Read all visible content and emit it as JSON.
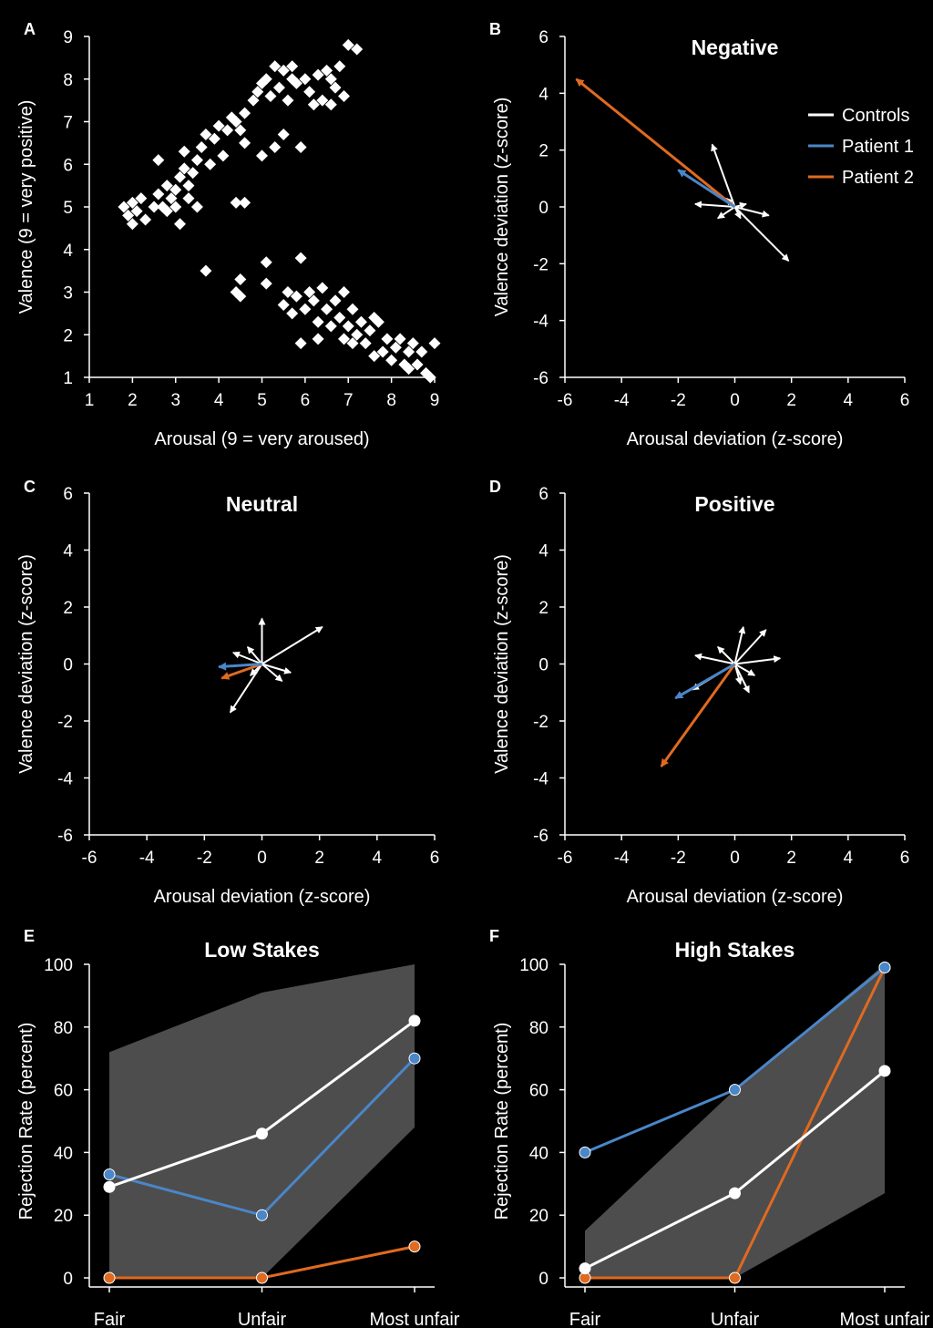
{
  "colors": {
    "background": "#000000",
    "controls": "#ffffff",
    "patient1": "#4a86c8",
    "patient2": "#e06a20",
    "band": "#4d4d4d"
  },
  "legend": {
    "controls": "Controls",
    "patient1": "Patient 1",
    "patient2": "Patient 2"
  },
  "chart_data": [
    {
      "panel": "A",
      "type": "scatter",
      "title": "",
      "xlabel": "Arousal (9 = very aroused)",
      "ylabel": "Valence (9 = very positive)",
      "xlim": [
        1,
        9
      ],
      "ylim": [
        1,
        9
      ],
      "xticks": [
        1,
        2,
        3,
        4,
        5,
        6,
        7,
        8,
        9
      ],
      "yticks": [
        1,
        2,
        3,
        4,
        5,
        6,
        7,
        8,
        9
      ],
      "marker": "diamond",
      "points": [
        [
          1.8,
          5.0
        ],
        [
          1.9,
          4.8
        ],
        [
          2.0,
          4.6
        ],
        [
          2.1,
          4.9
        ],
        [
          2.2,
          5.2
        ],
        [
          2.0,
          5.1
        ],
        [
          2.3,
          4.7
        ],
        [
          2.5,
          5.0
        ],
        [
          2.6,
          5.3
        ],
        [
          2.7,
          5.0
        ],
        [
          2.6,
          6.1
        ],
        [
          2.8,
          5.5
        ],
        [
          2.9,
          5.2
        ],
        [
          2.8,
          4.9
        ],
        [
          3.0,
          5.4
        ],
        [
          3.0,
          5.0
        ],
        [
          3.1,
          5.7
        ],
        [
          3.1,
          4.6
        ],
        [
          3.2,
          5.9
        ],
        [
          3.2,
          6.3
        ],
        [
          3.3,
          5.2
        ],
        [
          3.3,
          5.5
        ],
        [
          3.4,
          5.8
        ],
        [
          3.5,
          6.1
        ],
        [
          3.5,
          5.0
        ],
        [
          3.6,
          6.4
        ],
        [
          3.7,
          6.7
        ],
        [
          3.8,
          6.0
        ],
        [
          3.9,
          6.6
        ],
        [
          4.0,
          6.9
        ],
        [
          4.1,
          6.2
        ],
        [
          4.2,
          6.8
        ],
        [
          4.3,
          7.1
        ],
        [
          4.4,
          7.0
        ],
        [
          4.5,
          6.8
        ],
        [
          4.6,
          6.5
        ],
        [
          4.6,
          7.2
        ],
        [
          4.4,
          5.1
        ],
        [
          4.6,
          5.1
        ],
        [
          4.8,
          7.5
        ],
        [
          4.9,
          7.7
        ],
        [
          5.0,
          7.9
        ],
        [
          5.0,
          6.2
        ],
        [
          5.1,
          8.0
        ],
        [
          5.2,
          7.6
        ],
        [
          5.3,
          8.3
        ],
        [
          5.4,
          7.8
        ],
        [
          5.5,
          8.2
        ],
        [
          5.3,
          6.4
        ],
        [
          5.5,
          6.7
        ],
        [
          5.6,
          7.5
        ],
        [
          5.7,
          8.3
        ],
        [
          5.8,
          7.9
        ],
        [
          5.9,
          6.4
        ],
        [
          6.0,
          8.0
        ],
        [
          6.1,
          7.7
        ],
        [
          6.2,
          7.4
        ],
        [
          6.3,
          8.1
        ],
        [
          6.4,
          7.5
        ],
        [
          6.5,
          8.2
        ],
        [
          6.6,
          7.4
        ],
        [
          6.7,
          7.8
        ],
        [
          6.8,
          8.3
        ],
        [
          6.6,
          8.0
        ],
        [
          6.9,
          7.6
        ],
        [
          7.0,
          8.8
        ],
        [
          7.2,
          8.7
        ],
        [
          5.7,
          8.0
        ],
        [
          3.7,
          3.5
        ],
        [
          4.4,
          3.0
        ],
        [
          4.5,
          3.3
        ],
        [
          4.5,
          2.9
        ],
        [
          5.1,
          3.7
        ],
        [
          5.1,
          3.2
        ],
        [
          5.5,
          2.7
        ],
        [
          5.6,
          3.0
        ],
        [
          5.7,
          2.5
        ],
        [
          5.8,
          2.9
        ],
        [
          5.9,
          3.8
        ],
        [
          6.0,
          2.6
        ],
        [
          6.1,
          3.0
        ],
        [
          6.2,
          2.8
        ],
        [
          6.3,
          2.3
        ],
        [
          6.4,
          3.1
        ],
        [
          6.5,
          2.6
        ],
        [
          6.6,
          2.2
        ],
        [
          6.7,
          2.8
        ],
        [
          6.8,
          2.4
        ],
        [
          6.9,
          1.9
        ],
        [
          7.0,
          2.2
        ],
        [
          7.1,
          2.6
        ],
        [
          7.2,
          2.0
        ],
        [
          7.3,
          2.3
        ],
        [
          7.4,
          1.8
        ],
        [
          7.5,
          2.1
        ],
        [
          7.6,
          1.5
        ],
        [
          7.7,
          2.3
        ],
        [
          7.8,
          1.6
        ],
        [
          7.9,
          1.9
        ],
        [
          8.0,
          1.4
        ],
        [
          8.1,
          1.7
        ],
        [
          8.2,
          1.9
        ],
        [
          8.3,
          1.3
        ],
        [
          8.4,
          1.6
        ],
        [
          8.5,
          1.8
        ],
        [
          8.6,
          1.3
        ],
        [
          8.7,
          1.6
        ],
        [
          8.8,
          1.1
        ],
        [
          8.9,
          1.0
        ],
        [
          9.0,
          1.8
        ],
        [
          6.9,
          3.0
        ],
        [
          6.3,
          1.9
        ],
        [
          5.9,
          1.8
        ],
        [
          7.1,
          1.8
        ],
        [
          7.6,
          2.4
        ],
        [
          8.4,
          1.2
        ]
      ]
    },
    {
      "panel": "B",
      "type": "arrows",
      "title": "Negative",
      "xlabel": "Arousal deviation (z-score)",
      "ylabel": "Valence deviation (z-score)",
      "xlim": [
        -6,
        6
      ],
      "ylim": [
        -6,
        6
      ],
      "xticks": [
        -6,
        -4,
        -2,
        0,
        2,
        4,
        6
      ],
      "yticks": [
        -6,
        -4,
        -2,
        0,
        2,
        4,
        6
      ],
      "controls": [
        [
          -0.8,
          2.2
        ],
        [
          1.9,
          -1.9
        ],
        [
          -1.4,
          0.1
        ],
        [
          1.2,
          -0.3
        ],
        [
          -0.6,
          -0.4
        ],
        [
          0.4,
          0.1
        ],
        [
          0.2,
          -0.4
        ],
        [
          -0.3,
          0.3
        ]
      ],
      "patient1": [
        -2.0,
        1.3
      ],
      "patient2": [
        -5.6,
        4.5
      ]
    },
    {
      "panel": "C",
      "type": "arrows",
      "title": "Neutral",
      "xlabel": "Arousal deviation (z-score)",
      "ylabel": "Valence deviation (z-score)",
      "xlim": [
        -6,
        6
      ],
      "ylim": [
        -6,
        6
      ],
      "xticks": [
        -6,
        -4,
        -2,
        0,
        2,
        4,
        6
      ],
      "yticks": [
        -6,
        -4,
        -2,
        0,
        2,
        4,
        6
      ],
      "controls": [
        [
          0.0,
          1.6
        ],
        [
          2.1,
          1.3
        ],
        [
          -1.1,
          -1.7
        ],
        [
          -1.0,
          0.4
        ],
        [
          1.0,
          -0.3
        ],
        [
          0.7,
          -0.6
        ],
        [
          -0.5,
          0.6
        ],
        [
          -0.4,
          -0.4
        ]
      ],
      "patient1": [
        -1.5,
        -0.1
      ],
      "patient2": [
        -1.4,
        -0.5
      ]
    },
    {
      "panel": "D",
      "type": "arrows",
      "title": "Positive",
      "xlabel": "Arousal deviation (z-score)",
      "ylabel": "Valence deviation (z-score)",
      "xlim": [
        -6,
        6
      ],
      "ylim": [
        -6,
        6
      ],
      "xticks": [
        -6,
        -4,
        -2,
        0,
        2,
        4,
        6
      ],
      "yticks": [
        -6,
        -4,
        -2,
        0,
        2,
        4,
        6
      ],
      "controls": [
        [
          0.3,
          1.3
        ],
        [
          1.1,
          1.2
        ],
        [
          1.6,
          0.2
        ],
        [
          -1.4,
          0.3
        ],
        [
          -1.5,
          -0.9
        ],
        [
          0.5,
          -1.0
        ],
        [
          -0.6,
          0.6
        ],
        [
          0.7,
          -0.4
        ],
        [
          0.2,
          -0.7
        ]
      ],
      "patient1": [
        -2.1,
        -1.2
      ],
      "patient2": [
        -2.6,
        -3.6
      ]
    },
    {
      "panel": "E",
      "type": "line",
      "title": "Low Stakes",
      "xlabel": "",
      "ylabel": "Rejection Rate (percent)",
      "categories": [
        "Fair",
        "Unfair",
        "Most unfair"
      ],
      "ylim": [
        0,
        100
      ],
      "yticks": [
        0,
        20,
        40,
        60,
        80,
        100
      ],
      "band": {
        "upper": [
          72,
          91,
          100
        ],
        "lower": [
          0,
          0,
          48
        ]
      },
      "series": [
        {
          "name": "Controls",
          "values": [
            29,
            46,
            82
          ]
        },
        {
          "name": "Patient 1",
          "values": [
            33,
            20,
            70
          ]
        },
        {
          "name": "Patient 2",
          "values": [
            0,
            0,
            10
          ]
        }
      ]
    },
    {
      "panel": "F",
      "type": "line",
      "title": "High Stakes",
      "xlabel": "",
      "ylabel": "Rejection Rate (percent)",
      "categories": [
        "Fair",
        "Unfair",
        "Most unfair"
      ],
      "ylim": [
        0,
        100
      ],
      "yticks": [
        0,
        20,
        40,
        60,
        80,
        100
      ],
      "band": {
        "upper": [
          15,
          60,
          100
        ],
        "lower": [
          0,
          0,
          27
        ]
      },
      "series": [
        {
          "name": "Controls",
          "values": [
            3,
            27,
            66
          ]
        },
        {
          "name": "Patient 1",
          "values": [
            40,
            60,
            99
          ]
        },
        {
          "name": "Patient 2",
          "values": [
            0,
            0,
            99
          ]
        }
      ]
    }
  ]
}
